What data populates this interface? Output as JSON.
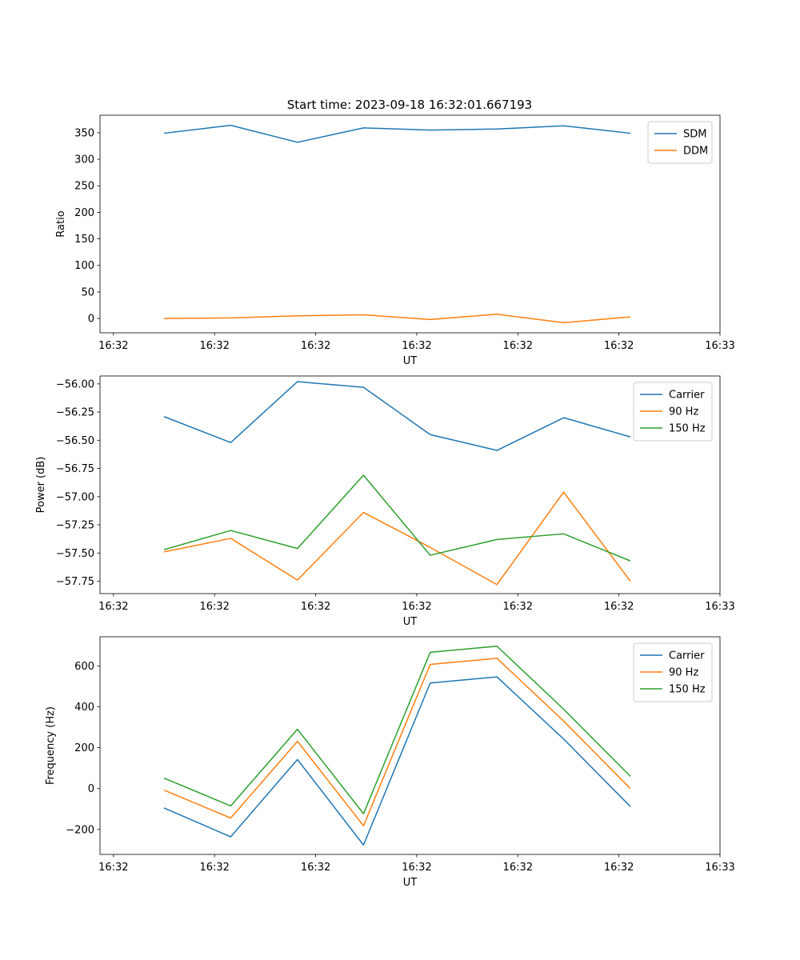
{
  "figure_title": "Start time: 2023-09-18 16:32:01.667193",
  "chart_data": [
    {
      "type": "line",
      "title": "Start time: 2023-09-18 16:32:01.667193",
      "xlabel": "UT",
      "ylabel": "Ratio",
      "xlim": [
        -0.2,
        9.0
      ],
      "ylim": [
        -27,
        383
      ],
      "x_tick_positions": [
        0,
        1.5,
        3,
        4.5,
        6,
        7.5,
        9
      ],
      "x_tick_labels": [
        "16:32",
        "16:32",
        "16:32",
        "16:32",
        "16:32",
        "16:32",
        "16:33"
      ],
      "y_ticks": [
        0,
        50,
        100,
        150,
        200,
        250,
        300,
        350
      ],
      "legend_position": "top-right",
      "x": [
        0.75,
        1.74,
        2.73,
        3.71,
        4.7,
        5.69,
        6.68,
        7.67
      ],
      "series": [
        {
          "name": "SDM",
          "color": "#1f77b4",
          "values": [
            349,
            364,
            332,
            359,
            355,
            357,
            363,
            349
          ]
        },
        {
          "name": "DDM",
          "color": "#ff7f0e",
          "values": [
            0,
            1,
            5,
            7,
            -2,
            8,
            -8,
            3
          ]
        }
      ]
    },
    {
      "type": "line",
      "title": "",
      "xlabel": "UT",
      "ylabel": "Power (dB)",
      "xlim": [
        -0.2,
        9.0
      ],
      "ylim": [
        -57.86,
        -55.93
      ],
      "x_tick_positions": [
        0,
        1.5,
        3,
        4.5,
        6,
        7.5,
        9
      ],
      "x_tick_labels": [
        "16:32",
        "16:32",
        "16:32",
        "16:32",
        "16:32",
        "16:32",
        "16:33"
      ],
      "y_ticks": [
        -56.0,
        -56.25,
        -56.5,
        -56.75,
        -57.0,
        -57.25,
        -57.5,
        -57.75
      ],
      "y_tick_labels": [
        "−56.00",
        "−56.25",
        "−56.50",
        "−56.75",
        "−57.00",
        "−57.25",
        "−57.50",
        "−57.75"
      ],
      "legend_position": "top-right",
      "x": [
        0.75,
        1.74,
        2.73,
        3.71,
        4.7,
        5.69,
        6.68,
        7.67
      ],
      "series": [
        {
          "name": "Carrier",
          "color": "#1f77b4",
          "values": [
            -56.29,
            -56.52,
            -55.98,
            -56.03,
            -56.45,
            -56.59,
            -56.3,
            -56.47
          ]
        },
        {
          "name": "90 Hz",
          "color": "#ff7f0e",
          "values": [
            -57.49,
            -57.37,
            -57.74,
            -57.14,
            -57.45,
            -57.78,
            -56.96,
            -57.75
          ]
        },
        {
          "name": "150 Hz",
          "color": "#2ca02c",
          "values": [
            -57.47,
            -57.3,
            -57.46,
            -56.81,
            -57.52,
            -57.38,
            -57.33,
            -57.57
          ]
        }
      ]
    },
    {
      "type": "line",
      "title": "",
      "xlabel": "UT",
      "ylabel": "Frequency (Hz)",
      "xlim": [
        -0.2,
        9.0
      ],
      "ylim": [
        -322,
        742
      ],
      "x_tick_positions": [
        0,
        1.5,
        3,
        4.5,
        6,
        7.5,
        9
      ],
      "x_tick_labels": [
        "16:32",
        "16:32",
        "16:32",
        "16:32",
        "16:32",
        "16:32",
        "16:33"
      ],
      "y_ticks": [
        -200,
        0,
        200,
        400,
        600
      ],
      "y_tick_labels": [
        "−200",
        "0",
        "200",
        "400",
        "600"
      ],
      "legend_position": "top-right",
      "x": [
        0.75,
        1.74,
        2.73,
        3.71,
        4.7,
        5.69,
        6.68,
        7.67
      ],
      "series": [
        {
          "name": "Carrier",
          "color": "#1f77b4",
          "values": [
            -95,
            -236,
            142,
            -276,
            516,
            546,
            242,
            -88
          ]
        },
        {
          "name": "90 Hz",
          "color": "#ff7f0e",
          "values": [
            -8,
            -144,
            231,
            -182,
            607,
            637,
            330,
            0
          ]
        },
        {
          "name": "150 Hz",
          "color": "#2ca02c",
          "values": [
            51,
            -85,
            290,
            -123,
            666,
            696,
            388,
            60
          ]
        }
      ]
    }
  ]
}
